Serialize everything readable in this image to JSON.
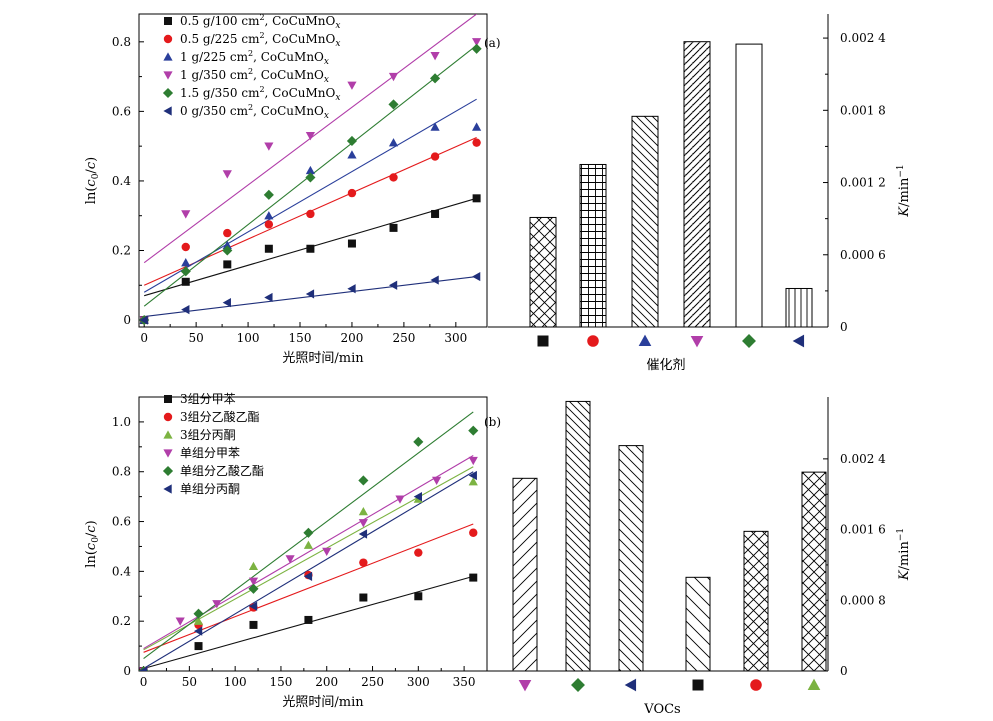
{
  "figure": {
    "panels": [
      {
        "id": "a",
        "panel_label": "(a)",
        "scatter": {
          "xlabel": "光照时间/min",
          "ylabel": "ln(c0/c)",
          "xlim": [
            -5,
            330
          ],
          "ylim": [
            -0.02,
            0.88
          ],
          "xticks": [
            0,
            50,
            100,
            150,
            200,
            250,
            300
          ],
          "yticks": [
            0,
            0.2,
            0.4,
            0.6,
            0.8
          ],
          "ytick_labels": [
            "0",
            "0.2",
            "0.4",
            "0.6",
            "0.8"
          ]
        },
        "bars": {
          "xlabel": "催化剂",
          "right_label": "K/min−1",
          "ylim": [
            0,
            0.0026
          ],
          "rticks": [
            0,
            0.0006,
            0.0012,
            0.0018,
            0.0024
          ],
          "rtick_labels": [
            "0",
            "0.000 6",
            "0.001 2",
            "0.001 8",
            "0.002 4"
          ]
        }
      },
      {
        "id": "b",
        "panel_label": "(b)",
        "scatter": {
          "xlabel": "光照时间/min",
          "ylabel": "ln(c0/c)",
          "xlim": [
            -5,
            375
          ],
          "ylim": [
            0,
            1.1
          ],
          "xticks": [
            0,
            50,
            100,
            150,
            200,
            250,
            300,
            350
          ],
          "yticks": [
            0,
            0.2,
            0.4,
            0.6,
            0.8,
            1.0
          ],
          "ytick_labels": [
            "0",
            "0.2",
            "0.4",
            "0.6",
            "0.8",
            "1.0"
          ]
        },
        "bars": {
          "xlabel": "VOCs",
          "right_label": "K/min−1",
          "ylim": [
            0,
            0.0031
          ],
          "rticks": [
            0,
            0.0008,
            0.0016,
            0.0024
          ],
          "rtick_labels": [
            "0",
            "0.000 8",
            "0.001 6",
            "0.002 4"
          ]
        }
      }
    ]
  },
  "chart_data": [
    {
      "type": "scatter",
      "panel": "(a)",
      "xlabel": "光照时间/min",
      "ylabel": "ln(c0/c)",
      "xlim": [
        -5,
        330
      ],
      "ylim": [
        -0.02,
        0.88
      ],
      "series": [
        {
          "name": "0.5 g/100 cm2, CoCuMnOx",
          "name_parts": [
            "0.5 g/100 cm",
            "2",
            ", CoCuMnO",
            "x"
          ],
          "marker": "square",
          "color": "#111111",
          "x": [
            0,
            40,
            80,
            120,
            160,
            200,
            240,
            280,
            320
          ],
          "y": [
            0,
            0.11,
            0.16,
            0.205,
            0.205,
            0.22,
            0.265,
            0.305,
            0.35
          ],
          "fit": [
            [
              0,
              0.07
            ],
            [
              320,
              0.35
            ]
          ]
        },
        {
          "name": "0.5 g/225 cm2, CoCuMnOx",
          "name_parts": [
            "0.5 g/225 cm",
            "2",
            ", CoCuMnO",
            "x"
          ],
          "marker": "circle",
          "color": "#e41a1c",
          "x": [
            0,
            40,
            80,
            120,
            160,
            200,
            240,
            280,
            320
          ],
          "y": [
            0,
            0.21,
            0.25,
            0.275,
            0.305,
            0.365,
            0.41,
            0.47,
            0.51
          ],
          "fit": [
            [
              0,
              0.1
            ],
            [
              320,
              0.525
            ]
          ]
        },
        {
          "name": "1 g/225 cm2, CoCuMnOx",
          "name_parts": [
            "1 g/225 cm",
            "2",
            ", CoCuMnO",
            "x"
          ],
          "marker": "triangle-up",
          "color": "#2a3f9b",
          "x": [
            0,
            40,
            80,
            120,
            160,
            200,
            240,
            280,
            320
          ],
          "y": [
            0,
            0.165,
            0.215,
            0.3,
            0.43,
            0.475,
            0.51,
            0.555,
            0.555
          ],
          "fit": [
            [
              0,
              0.08
            ],
            [
              320,
              0.635
            ]
          ]
        },
        {
          "name": "1 g/350 cm2, CoCuMnOx",
          "name_parts": [
            "1 g/350 cm",
            "2",
            ", CoCuMnO",
            "x"
          ],
          "marker": "triangle-down",
          "color": "#b13ea9",
          "x": [
            0,
            40,
            80,
            120,
            160,
            200,
            240,
            280,
            320
          ],
          "y": [
            0,
            0.305,
            0.42,
            0.5,
            0.53,
            0.675,
            0.7,
            0.76,
            0.8
          ],
          "fit": [
            [
              0,
              0.165
            ],
            [
              320,
              0.88
            ]
          ]
        },
        {
          "name": "1.5 g/350 cm2, CoCuMnOx",
          "name_parts": [
            "1.5 g/350 cm",
            "2",
            ", CoCuMnO",
            "x"
          ],
          "marker": "diamond",
          "color": "#2e7d32",
          "x": [
            0,
            40,
            80,
            120,
            160,
            200,
            240,
            280,
            320
          ],
          "y": [
            0,
            0.14,
            0.2,
            0.36,
            0.41,
            0.515,
            0.62,
            0.695,
            0.78
          ],
          "fit": [
            [
              0,
              0.04
            ],
            [
              320,
              0.79
            ]
          ]
        },
        {
          "name": "0 g/350 cm2, CoCuMnOx",
          "name_parts": [
            "0 g/350 cm",
            "2",
            ", CoCuMnO",
            "x"
          ],
          "marker": "triangle-left",
          "color": "#1f2f7a",
          "x": [
            0,
            40,
            80,
            120,
            160,
            200,
            240,
            280,
            320
          ],
          "y": [
            0,
            0.03,
            0.05,
            0.065,
            0.075,
            0.09,
            0.1,
            0.115,
            0.125
          ],
          "fit": [
            [
              0,
              0.01
            ],
            [
              320,
              0.125
            ]
          ]
        }
      ]
    },
    {
      "type": "bar",
      "panel": "(a)",
      "xlabel": "催化剂",
      "ylabel": "K/min−1",
      "ylim": [
        0,
        0.0026
      ],
      "categories": [
        "0.5 g/100 cm2, CoCuMnOx",
        "0.5 g/225 cm2, CoCuMnOx",
        "1 g/225 cm2, CoCuMnOx",
        "1 g/350 cm2, CoCuMnOx",
        "1.5 g/350 cm2, CoCuMnOx",
        "0 g/350 cm2, CoCuMnOx"
      ],
      "values": [
        0.00091,
        0.00135,
        0.00175,
        0.00237,
        0.00235,
        0.00032
      ],
      "patterns": [
        "crosshatch",
        "grid",
        "diag-back",
        "diag-back-dense",
        "none",
        "vertical"
      ],
      "markers": [
        "square",
        "circle",
        "triangle-up",
        "triangle-down",
        "diamond",
        "triangle-left"
      ],
      "marker_colors": [
        "#111111",
        "#e41a1c",
        "#2a3f9b",
        "#b13ea9",
        "#2e7d32",
        "#1f2f7a"
      ]
    },
    {
      "type": "scatter",
      "panel": "(b)",
      "xlabel": "光照时间/min",
      "ylabel": "ln(c0/c)",
      "xlim": [
        -5,
        375
      ],
      "ylim": [
        0,
        1.1
      ],
      "series": [
        {
          "name": "3组分甲苯",
          "marker": "square",
          "color": "#111111",
          "x": [
            0,
            60,
            120,
            180,
            240,
            300,
            360
          ],
          "y": [
            0,
            0.1,
            0.185,
            0.205,
            0.295,
            0.3,
            0.375
          ],
          "fit": [
            [
              0,
              0.01
            ],
            [
              360,
              0.38
            ]
          ]
        },
        {
          "name": "3组分乙酸乙酯",
          "marker": "circle",
          "color": "#e41a1c",
          "x": [
            0,
            60,
            120,
            180,
            240,
            300,
            360
          ],
          "y": [
            0,
            0.185,
            0.255,
            0.385,
            0.435,
            0.475,
            0.555
          ],
          "fit": [
            [
              0,
              0.075
            ],
            [
              360,
              0.59
            ]
          ]
        },
        {
          "name": "3组分丙酮",
          "marker": "triangle-up",
          "color": "#7cb342",
          "x": [
            0,
            60,
            120,
            180,
            240,
            300,
            360
          ],
          "y": [
            0,
            0.2,
            0.42,
            0.505,
            0.64,
            0.69,
            0.76
          ],
          "fit": [
            [
              0,
              0.085
            ],
            [
              360,
              0.82
            ]
          ]
        },
        {
          "name": "单组分甲苯",
          "marker": "triangle-down",
          "color": "#b13ea9",
          "x": [
            0,
            40,
            80,
            120,
            160,
            200,
            240,
            280,
            320,
            360
          ],
          "y": [
            0,
            0.2,
            0.27,
            0.36,
            0.45,
            0.48,
            0.595,
            0.69,
            0.765,
            0.845
          ],
          "fit": [
            [
              0,
              0.09
            ],
            [
              360,
              0.865
            ]
          ]
        },
        {
          "name": "单组分乙酸乙酯",
          "marker": "diamond",
          "color": "#2e7d32",
          "x": [
            0,
            60,
            120,
            180,
            240,
            300,
            360
          ],
          "y": [
            0,
            0.23,
            0.33,
            0.555,
            0.765,
            0.92,
            0.965
          ],
          "fit": [
            [
              0,
              0.05
            ],
            [
              360,
              1.04
            ]
          ]
        },
        {
          "name": "单组分丙酮",
          "marker": "triangle-left",
          "color": "#1f2f7a",
          "x": [
            0,
            60,
            120,
            180,
            240,
            300,
            360
          ],
          "y": [
            0,
            0.16,
            0.26,
            0.38,
            0.55,
            0.7,
            0.785
          ],
          "fit": [
            [
              0,
              0.01
            ],
            [
              360,
              0.8
            ]
          ]
        }
      ]
    },
    {
      "type": "bar",
      "panel": "(b)",
      "xlabel": "VOCs",
      "ylabel": "K/min−1",
      "ylim": [
        0,
        0.0031
      ],
      "categories": [
        "单组分甲苯",
        "单组分乙酸乙酯",
        "单组分丙酮",
        "3组分甲苯",
        "3组分乙酸乙酯",
        "3组分丙酮"
      ],
      "values": [
        0.00218,
        0.00305,
        0.00255,
        0.00106,
        0.00158,
        0.00225
      ],
      "patterns": [
        "diag-fwd-wide",
        "diag-back",
        "diag-back-wide",
        "diag-back-sparse",
        "crosshatch",
        "crosshatch"
      ],
      "markers": [
        "triangle-down",
        "diamond",
        "triangle-left",
        "square",
        "circle",
        "triangle-up"
      ],
      "marker_colors": [
        "#b13ea9",
        "#2e7d32",
        "#1f2f7a",
        "#111111",
        "#e41a1c",
        "#7cb342"
      ]
    }
  ]
}
